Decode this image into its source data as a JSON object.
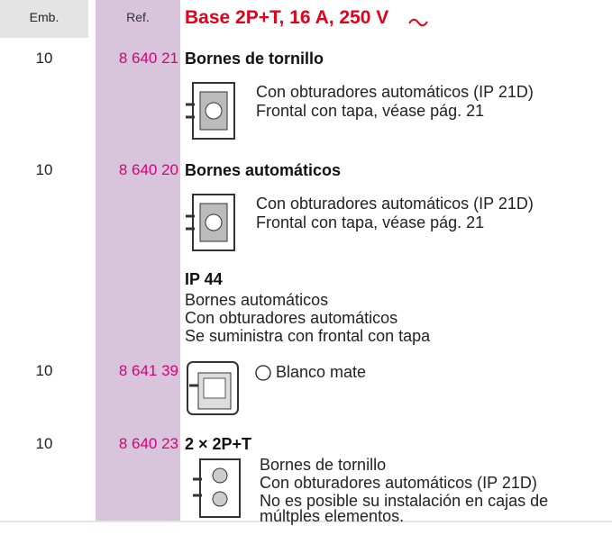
{
  "header": {
    "emb": "Emb.",
    "ref": "Ref.",
    "title": "Base 2P+T, 16 A, 250 V"
  },
  "items": [
    {
      "emb": "10",
      "ref": "8 640 21",
      "name": "Bornes de tornillo",
      "lines": [
        "Con obturadores automáticos (IP 21D)",
        "Frontal con tapa, véase pág. 21"
      ]
    },
    {
      "emb": "10",
      "ref": "8 640 20",
      "name": "Bornes automáticos",
      "lines": [
        "Con obturadores automáticos (IP 21D)",
        "Frontal con tapa, véase pág. 21"
      ]
    }
  ],
  "section": {
    "title": "IP 44",
    "lines": [
      "Bornes automáticos",
      "Con obturadores automáticos",
      "Se suministra con frontal con tapa"
    ]
  },
  "ip44_item": {
    "emb": "10",
    "ref": "8 641 39",
    "finish": "Blanco mate"
  },
  "double_item": {
    "emb": "10",
    "ref": "8 640 23",
    "name": "2 × 2P+T",
    "lines": [
      "Bornes de tornillo",
      "Con obturadores automáticos (IP 21D)",
      "No es posible su instalación en cajas de",
      "múltples elementos."
    ]
  }
}
